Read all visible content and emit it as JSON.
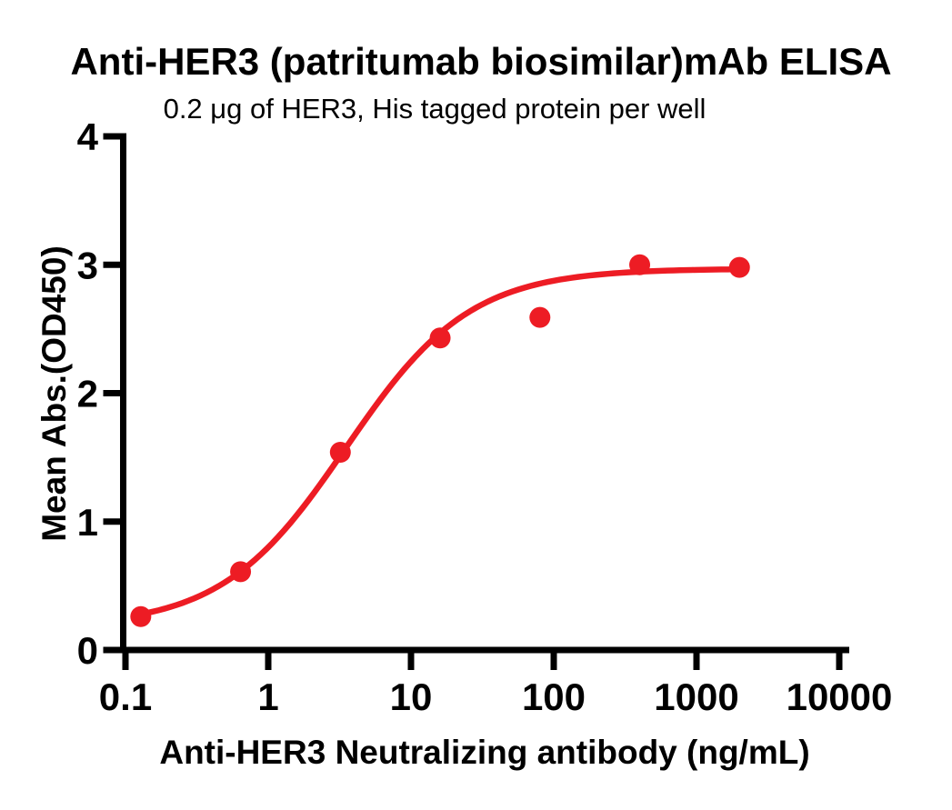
{
  "figure": {
    "background": "#ffffff"
  },
  "chart_data": {
    "type": "scatter",
    "title": "Anti-HER3 (patritumab biosimilar)mAb ELISA",
    "subtitle": "0.2 μg of HER3, His tagged protein per well",
    "xlabel": "Anti-HER3 Neutralizing antibody (ng/mL)",
    "ylabel": "Mean Abs.(OD450)",
    "x_scale": "log10",
    "xlim": [
      0.1,
      10000
    ],
    "ylim": [
      0,
      4
    ],
    "grid": false,
    "legend": "none",
    "x_ticks": [
      0.1,
      1,
      10,
      100,
      1000,
      10000
    ],
    "x_tick_labels": [
      "0.1",
      "1",
      "10",
      "100",
      "1000",
      "10000"
    ],
    "y_ticks": [
      0,
      1,
      2,
      3,
      4
    ],
    "y_tick_labels": [
      "0",
      "1",
      "2",
      "3",
      "4"
    ],
    "series": [
      {
        "name": "Anti-HER3 (patritumab biosimilar) mAb",
        "marker": "circle",
        "marker_color": "#ED1C24",
        "line_color": "#ED1C24",
        "points": [
          {
            "x": 0.128,
            "y": 0.26
          },
          {
            "x": 0.64,
            "y": 0.61
          },
          {
            "x": 3.2,
            "y": 1.54
          },
          {
            "x": 16,
            "y": 2.43
          },
          {
            "x": 80,
            "y": 2.59
          },
          {
            "x": 400,
            "y": 3.0
          },
          {
            "x": 2000,
            "y": 2.98
          }
        ],
        "fit": {
          "model": "4PL",
          "bottom": 0.18,
          "top": 2.97,
          "ec50": 3.5,
          "hill": 1.0,
          "x_range": [
            0.128,
            2000
          ]
        }
      }
    ],
    "colors": {
      "accent_red": "#ED1C24",
      "axis_black": "#000000",
      "background": "#FFFFFF"
    }
  }
}
